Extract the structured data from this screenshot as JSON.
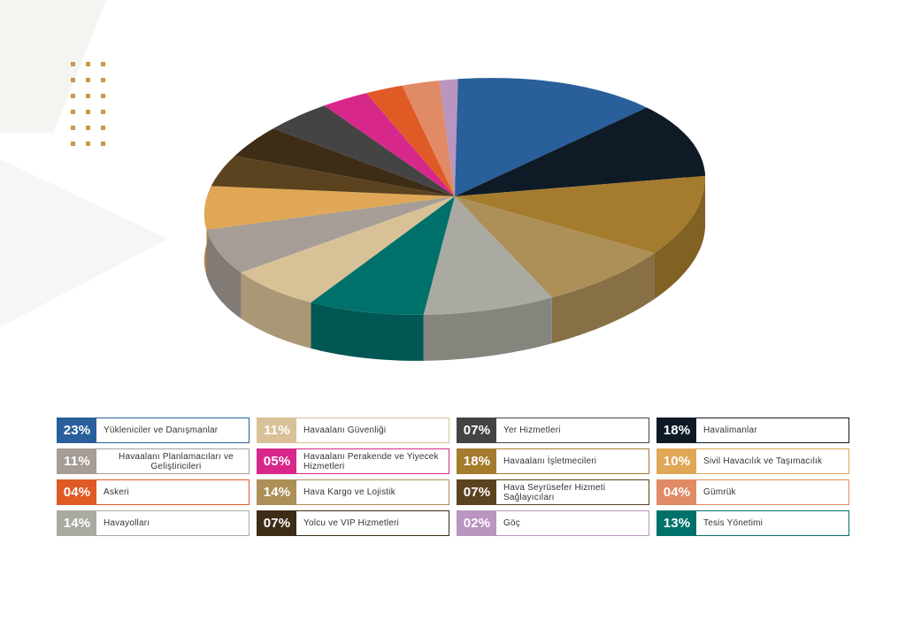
{
  "chart_data": {
    "type": "pie",
    "title": "",
    "slices": [
      {
        "label": "Yükleniciler ve Danışmanlar",
        "value_label": "23%",
        "value": 23,
        "color": "#295f9a"
      },
      {
        "label": "Havaalanı Güvenliği",
        "value_label": "11%",
        "value": 11,
        "color": "#d9c197"
      },
      {
        "label": "Yer Hizmetleri",
        "value_label": "07%",
        "value": 7,
        "color": "#444444"
      },
      {
        "label": "Havalimanlar",
        "value_label": "18%",
        "value": 18,
        "color": "#0f1a27"
      },
      {
        "label": "Havaalanı Planlamacıları ve Geliştiricileri",
        "value_label": "11%",
        "value": 11,
        "color": "#a59d96"
      },
      {
        "label": "Havaalanı Perakende ve Yiyecek Hizmetleri",
        "value_label": "05%",
        "value": 5,
        "color": "#d8278b"
      },
      {
        "label": "Havaalanı İşletmecileri",
        "value_label": "18%",
        "value": 18,
        "color": "#a57c2e"
      },
      {
        "label": "Sivil Havacılık ve Taşımacılık",
        "value_label": "10%",
        "value": 10,
        "color": "#dfa756"
      },
      {
        "label": "Askeri",
        "value_label": "04%",
        "value": 4,
        "color": "#e05a26"
      },
      {
        "label": "Hava Kargo ve Lojistik",
        "value_label": "14%",
        "value": 14,
        "color": "#ad8f58"
      },
      {
        "label": "Hava Seyrüsefer Hizmeti Sağlayıcıları",
        "value_label": "07%",
        "value": 7,
        "color": "#5c4320"
      },
      {
        "label": "Gümrük",
        "value_label": "04%",
        "value": 4,
        "color": "#e08a66"
      },
      {
        "label": "Havayolları",
        "value_label": "14%",
        "value": 14,
        "color": "#aaaaa2"
      },
      {
        "label": "Yolcu ve VIP Hizmetleri",
        "value_label": "07%",
        "value": 7,
        "color": "#3d2c16"
      },
      {
        "label": "Göç",
        "value_label": "02%",
        "value": 2,
        "color": "#b995bf"
      },
      {
        "label": "Tesis Yönetimi",
        "value_label": "13%",
        "value": 13,
        "color": "#00706b"
      }
    ],
    "pie_order": [
      "Göç",
      "Yükleniciler ve Danışmanlar",
      "Havalimanlar",
      "Havaalanı İşletmecileri",
      "Hava Kargo ve Lojistik",
      "Havayolları",
      "Tesis Yönetimi",
      "Havaalanı Güvenliği",
      "Havaalanı Planlamacıları ve Geliştiricileri",
      "Sivil Havacılık ve Taşımacılık",
      "Hava Seyrüsefer Hizmeti Sağlayıcıları",
      "Yolcu ve VIP Hizmetleri",
      "Yer Hizmetleri",
      "Havaalanı Perakende ve Yiyecek Hizmetleri",
      "Askeri",
      "Gümrük"
    ],
    "legend_placement": "bottom",
    "style": "3d"
  },
  "decor": {
    "dot_color": "#c79a46"
  }
}
